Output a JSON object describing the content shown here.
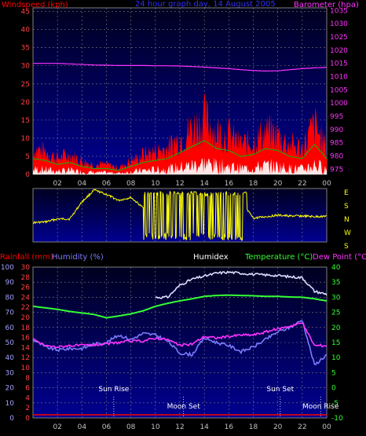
{
  "colors": {
    "background": "#000000",
    "plot_background_top": "#000020",
    "plot_background_bottom": "#000090",
    "grid": "#7f7f7f",
    "wind_speed": "#ff0000",
    "wind_average": "#00c000",
    "wind_gust_base": "#ffffff",
    "wind_low": "#0000c8",
    "barometer": "#ff33ff",
    "wind_direction": "#ffff00",
    "temperature": "#33ff33",
    "humidity": "#7b7bff",
    "dew_point": "#ff33ff",
    "humidex": "#ddddff",
    "rainfall": "#ff0000",
    "axis_right": "#ffff00",
    "axis_left_top": "#ff4040",
    "axis_left_bottom": "#a0a0ff"
  },
  "header_top": {
    "wind_label": "Windspeed (kph)",
    "title": "24 hour graph day, 14 August 2005",
    "baro_label": "Barometer (hpa)"
  },
  "header_bottom": {
    "rainfall_label": "Rainfall (mm)",
    "humidity_label": "Humidity (%)",
    "humidex_label": "Humidex",
    "temperature_label": "Temperature (°C)",
    "dewpoint_label": "Dew Point (°C)"
  },
  "compass": [
    "E",
    "S",
    "N",
    "W",
    "S"
  ],
  "chart_data": [
    {
      "type": "area",
      "x_ticks": [
        "02",
        "04",
        "06",
        "08",
        "10",
        "12",
        "14",
        "16",
        "18",
        "20",
        "22",
        "00"
      ],
      "y_left_ticks": [
        "0",
        "5",
        "10",
        "15",
        "20",
        "25",
        "30",
        "35",
        "40",
        "45"
      ],
      "y_right_ticks": [
        "975",
        "980",
        "985",
        "990",
        "995",
        "1000",
        "1005",
        "1010",
        "1015",
        "1020",
        "1025",
        "1030",
        "1035"
      ],
      "ylim_left": [
        0,
        46
      ],
      "ylim_right": [
        973,
        1036
      ],
      "hours": [
        0,
        1,
        2,
        3,
        4,
        5,
        6,
        7,
        8,
        9,
        10,
        11,
        12,
        13,
        14,
        15,
        16,
        17,
        18,
        19,
        20,
        21,
        22,
        23,
        24
      ],
      "series": [
        {
          "name": "Windspeed (kph)",
          "axis": "left",
          "values": [
            8,
            7,
            5,
            6,
            4,
            3,
            3,
            2,
            4,
            6,
            7,
            8,
            11,
            14,
            17,
            13,
            12,
            9,
            10,
            13,
            12,
            9,
            8,
            15,
            8
          ]
        },
        {
          "name": "Barometer (hpa)",
          "axis": "right",
          "values": [
            1015,
            1015,
            1015,
            1014.8,
            1014.6,
            1014.4,
            1014.3,
            1014.2,
            1014.2,
            1014.2,
            1014.1,
            1014.1,
            1014,
            1013.8,
            1013.6,
            1013.3,
            1013,
            1012.6,
            1012.3,
            1012.1,
            1012.2,
            1012.6,
            1013,
            1013.3,
            1013.5
          ]
        }
      ],
      "grid": true
    },
    {
      "type": "line",
      "name": "Wind direction",
      "hours": [
        0,
        1,
        2,
        3,
        4,
        5,
        6,
        7,
        8,
        9,
        10,
        11,
        12,
        13,
        14,
        15,
        16,
        17,
        18,
        19,
        20,
        21,
        22,
        23,
        24
      ],
      "values_deg": [
        230,
        225,
        205,
        205,
        90,
        10,
        40,
        80,
        60,
        130,
        130,
        50,
        120,
        180,
        160,
        130,
        130,
        90,
        200,
        190,
        180,
        185,
        185,
        190,
        185
      ],
      "grid": true
    },
    {
      "type": "line",
      "x_ticks": [
        "02",
        "04",
        "06",
        "08",
        "10",
        "12",
        "14",
        "16",
        "18",
        "20",
        "22",
        "00"
      ],
      "y_rain_ticks": [
        "0",
        "2",
        "4",
        "6",
        "8",
        "10",
        "12",
        "14",
        "16",
        "18",
        "20",
        "22",
        "24",
        "26",
        "28",
        "30"
      ],
      "y_humidity_ticks": [
        "0",
        "10",
        "20",
        "30",
        "40",
        "50",
        "60",
        "70",
        "80",
        "90",
        "100"
      ],
      "y_temp_ticks": [
        "-10",
        "-5",
        "0",
        "5",
        "10",
        "15",
        "20",
        "25",
        "30",
        "35",
        "40"
      ],
      "ylim_temp": [
        -10,
        40
      ],
      "ylim_humidity": [
        0,
        100
      ],
      "hours": [
        0,
        1,
        2,
        3,
        4,
        5,
        6,
        7,
        8,
        9,
        10,
        11,
        12,
        13,
        14,
        15,
        16,
        17,
        18,
        19,
        20,
        21,
        22,
        23,
        24
      ],
      "series": [
        {
          "name": "Temperature (°C)",
          "axis": "temp",
          "values": [
            27,
            26.5,
            26,
            25.3,
            24.8,
            24.3,
            23.2,
            23.8,
            24.5,
            25.5,
            27,
            28,
            28.8,
            29.5,
            30.3,
            30.6,
            30.7,
            30.6,
            30.5,
            30.3,
            30.3,
            30.1,
            30,
            29.5,
            28.8
          ]
        },
        {
          "name": "Humidex",
          "axis": "temp",
          "values": [
            null,
            null,
            null,
            null,
            null,
            null,
            null,
            null,
            null,
            null,
            null,
            30,
            34,
            36,
            37,
            38,
            38.3,
            38,
            37.6,
            37.4,
            37.2,
            36.8,
            36.5,
            32,
            31
          ]
        },
        {
          "name": "Humidity (%)",
          "axis": "humidity",
          "values": [
            52,
            47,
            45,
            46,
            46,
            49,
            50,
            55,
            52,
            56,
            55,
            51,
            43,
            42,
            53,
            50,
            48,
            44,
            47,
            52,
            57,
            60,
            65,
            35,
            42
          ]
        },
        {
          "name": "Dew Point (°C)",
          "axis": "temp",
          "values": [
            16,
            14,
            13.5,
            14,
            14,
            14.2,
            14.5,
            15,
            15.5,
            15.5,
            16.5,
            16,
            14,
            14.5,
            17,
            16.5,
            17,
            17.5,
            17.5,
            18.5,
            19.5,
            20.5,
            21.5,
            14,
            14
          ]
        },
        {
          "name": "Rainfall (mm)",
          "axis": "rain",
          "values": [
            0,
            0,
            0,
            0,
            0,
            0,
            0,
            0,
            0,
            0,
            0,
            0,
            0,
            0,
            0,
            0,
            0,
            0,
            0,
            0,
            0,
            0,
            0,
            0,
            0
          ]
        }
      ],
      "annotations": [
        {
          "label": "Sun Rise",
          "hour": 6.6
        },
        {
          "label": "Moon Set",
          "hour": 12.3
        },
        {
          "label": "Sun Set",
          "hour": 20.2
        },
        {
          "label": "Moon Rise",
          "hour": 23.5
        }
      ],
      "grid": true
    }
  ]
}
